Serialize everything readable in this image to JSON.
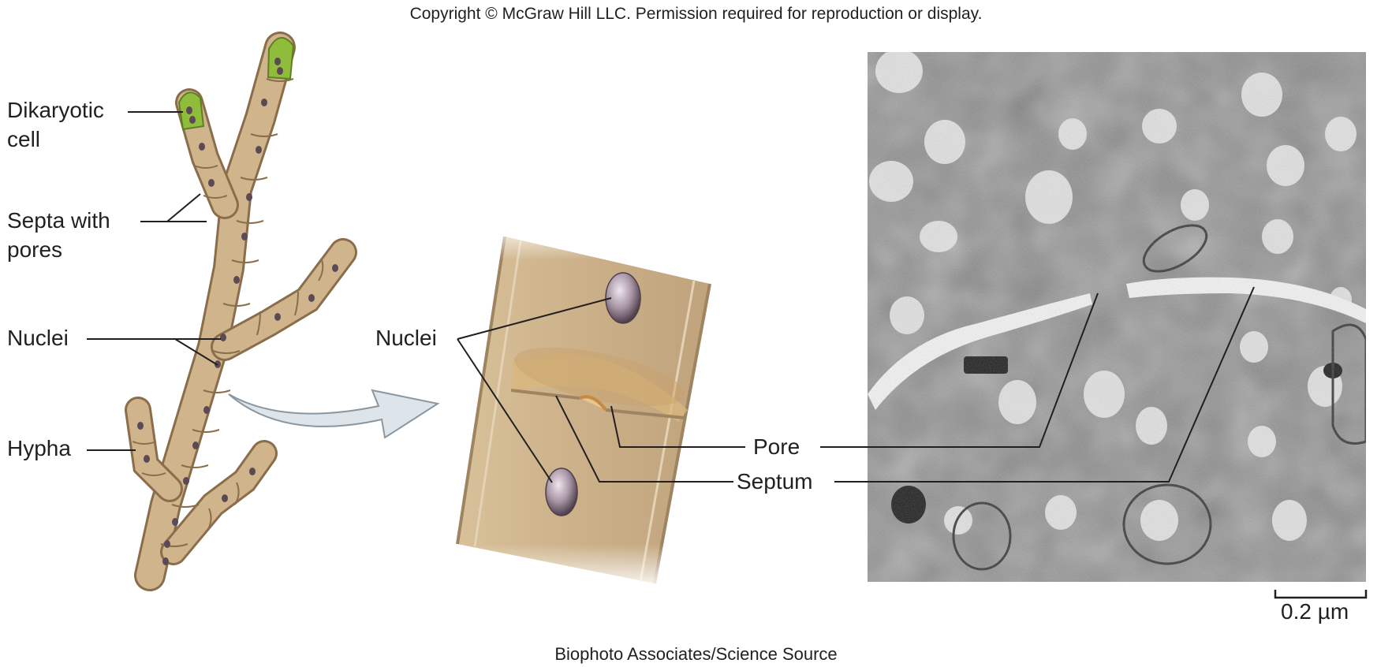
{
  "copyright": "Copyright © McGraw Hill LLC. Permission required for reproduction or display.",
  "credit": "Biophoto Associates/Science Source",
  "left_panel": {
    "labels": {
      "dikaryotic_line1": "Dikaryotic",
      "dikaryotic_line2": "cell",
      "septa_line1": "Septa with",
      "septa_line2": "pores",
      "nuclei": "Nuclei",
      "hypha": "Hypha"
    }
  },
  "middle_panel": {
    "nuclei_label": "Nuclei"
  },
  "right_panel": {
    "pore_label": "Pore",
    "septum_label": "Septum",
    "scale_bar": "0.2 µm"
  },
  "colors": {
    "hypha_fill": "#c9ae86",
    "hypha_outline": "#8a6d4a",
    "dikaryotic_tip": "#8fbc3b",
    "nucleus": "#5b4a55",
    "arrow_fill": "#dde5ea",
    "micrograph_bg": "#8a8a8a"
  }
}
